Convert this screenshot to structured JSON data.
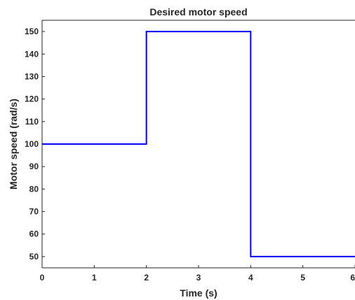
{
  "chart_data": {
    "type": "line",
    "title": "Desired motor speed",
    "xlabel": "Time (s)",
    "ylabel": "Motor speed (rad/s)",
    "xlim": [
      0,
      6
    ],
    "ylim": [
      45,
      155
    ],
    "xticks": [
      0,
      1,
      2,
      3,
      4,
      5,
      6
    ],
    "yticks": [
      50,
      60,
      70,
      80,
      90,
      100,
      110,
      120,
      130,
      140,
      150
    ],
    "grid": false,
    "series": [
      {
        "color": "#0000ff",
        "x": [
          0,
          2,
          2,
          4,
          4,
          6
        ],
        "y": [
          100,
          100,
          150,
          150,
          50,
          50
        ]
      }
    ]
  }
}
